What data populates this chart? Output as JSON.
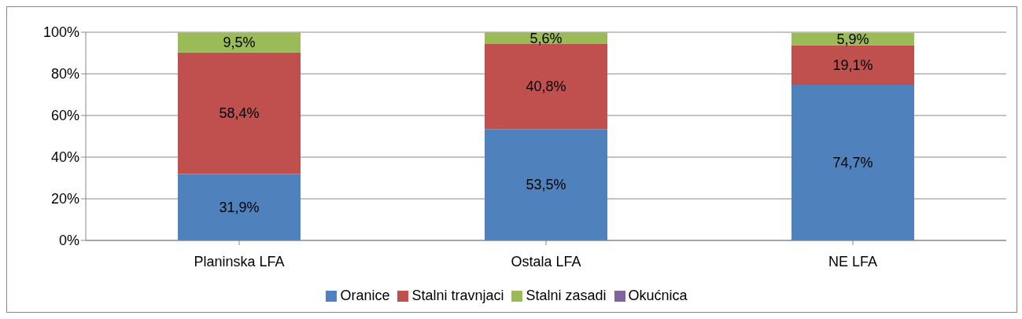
{
  "chart_data": {
    "type": "bar",
    "stacked": true,
    "categories": [
      "Planinska LFA",
      "Ostala LFA",
      "NE LFA"
    ],
    "series": [
      {
        "name": "Oranice",
        "color": "#4f81bd",
        "values": [
          31.9,
          53.5,
          74.7
        ],
        "value_labels": [
          "31,9%",
          "53,5%",
          "74,7%"
        ]
      },
      {
        "name": "Stalni travnjaci",
        "color": "#c0504d",
        "values": [
          58.4,
          40.8,
          19.1
        ],
        "value_labels": [
          "58,4%",
          "40,8%",
          "19,1%"
        ]
      },
      {
        "name": "Stalni zasadi",
        "color": "#9bbb59",
        "values": [
          9.5,
          5.6,
          5.9
        ],
        "value_labels": [
          "9,5%",
          "5,6%",
          "5,9%"
        ]
      },
      {
        "name": "Okućnica",
        "color": "#8064a2",
        "values": [
          null,
          null,
          null
        ]
      }
    ],
    "ylim": [
      0,
      100
    ],
    "yticks": [
      {
        "value": 0,
        "label": "0%"
      },
      {
        "value": 20,
        "label": "20%"
      },
      {
        "value": 40,
        "label": "40%"
      },
      {
        "value": 60,
        "label": "60%"
      },
      {
        "value": 80,
        "label": "80%"
      },
      {
        "value": 100,
        "label": "100%"
      }
    ],
    "grid": "y",
    "legend": "bottom"
  }
}
